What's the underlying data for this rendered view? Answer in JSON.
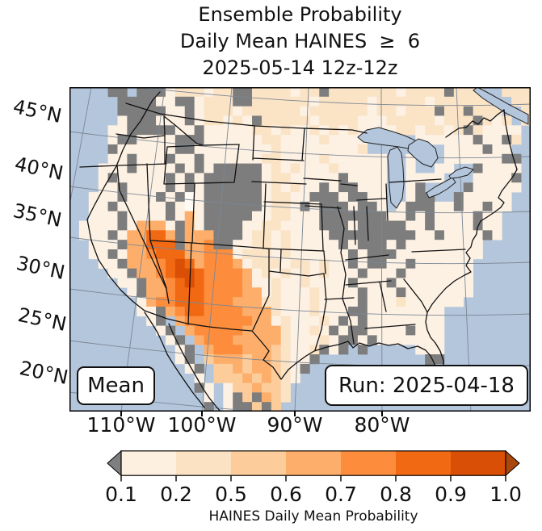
{
  "title": {
    "line1": "Ensemble Probability",
    "line2": "Daily Mean HAINES  ≥  6",
    "line3": "2025-05-14 12z-12z"
  },
  "map": {
    "mean_label": "Mean",
    "run_label": "Run: 2025-04-18",
    "lat_labels": [
      "45°N",
      "40°N",
      "35°N",
      "30°N",
      "25°N",
      "20°N"
    ],
    "lon_labels": [
      "110°W",
      "100°W",
      "90°W",
      "80°W"
    ],
    "ocean_color": "#b4c6dc",
    "graticule_color": "#7b8794",
    "border_color": "#111111"
  },
  "colorbar": {
    "ticks": [
      "0.1",
      "0.2",
      "0.5",
      "0.6",
      "0.7",
      "0.8",
      "0.9",
      "1.0"
    ],
    "caption": "HAINES Daily Mean Probability",
    "segment_colors": [
      "#fdf0e0",
      "#fbe2c3",
      "#fccc9b",
      "#fdae6b",
      "#fd8d3c",
      "#f16913",
      "#d94f05"
    ],
    "under_color": "#7f7f7f",
    "over_color": "#a8480c",
    "outline_color": "#000000"
  },
  "chart_data": {
    "type": "heatmap",
    "title": "Ensemble Probability Daily Mean HAINES ≥ 6 2025-05-14 12z-12z",
    "colorbar_label": "HAINES Daily Mean Probability",
    "levels": [
      0.1,
      0.2,
      0.5,
      0.6,
      0.7,
      0.8,
      0.9,
      1.0
    ],
    "level_colors": [
      "#fdf0e0",
      "#fbe2c3",
      "#fccc9b",
      "#fdae6b",
      "#fd8d3c",
      "#f16913",
      "#d94f05"
    ],
    "under_level_color": "#7f7f7f",
    "over_level_color": "#a8480c",
    "annotations": [
      "Mean",
      "Run: 2025-04-18"
    ],
    "x_ticks": [
      "110°W",
      "100°W",
      "90°W",
      "80°W"
    ],
    "y_ticks": [
      "45°N",
      "40°N",
      "35°N",
      "30°N",
      "25°N",
      "20°N"
    ],
    "notes": "CONUS map of ensemble probability of daily-mean Haines index >= 6. Highest probabilities (0.7-1.0, dark orange) over Arizona, New Mexico and Chihuahua, extending 0.5-0.8 along the Rio Grande into west Texas; gray cells (< 0.1) over Washington, Wyoming, the Ohio valley / mid-Mississippi valley, the Gulf coast and south Florida; most remaining land 0.1-0.5 pale orange.",
    "grid": {
      "cols": 48,
      "rows": 34,
      "cell_legend": {
        ".": "ocean/no data",
        "a": "0.1-0.2",
        "b": "0.2-0.5",
        "c": "0.5-0.6",
        "d": "0.6-0.7",
        "e": "0.7-0.8",
        "f": "0.8-0.9",
        "h": "0.9-1.0",
        "g": "<0.1",
        "w": "near-zero white"
      },
      "cell_colors": {
        "a": "#fdf1e3",
        "b": "#fbe3c6",
        "c": "#fccc9b",
        "d": "#fdae6b",
        "e": "#fd8d3c",
        "f": "#f16913",
        "h": "#d94f05",
        "g": "#7d7d7d",
        "w": "#fffaf3"
      },
      "rows_data": [
        "....gg.gggabbbabbggbbbbabbgbbbbbbbabbbbgbbb..bbb",
        ".....ggggaaggabbbggbbbbbbabbbbbabbbbbabbbbbb..bb",
        ".....gggggaagabbbabbbbbbabbbbbbabbabbbgbbgbbb..b",
        ".....agggaaagabbabagbbbbbabbbbaaabbbbbabbbgbab.b",
        "....aagggggaagaaaaabbabaabababaaaabbabbabgbaaaa.",
        "....aggaaaagggaaaaaabbaaaabaaaa.....aaaaaagaagb.",
        "....gaaaaaaggaaaaaaaabaaaaaaaab........aaaagaa..",
        "....aagaaagaagaaaaaabbaaaabaaaaaa..a...aaaaaagg.",
        "...aaagaaaagagagggggababaaabaaaaa..a..aa..gaaaa.",
        "...agaaaaagagaggggggabbaaaaagaaaa..aaaa...aaaag.",
        "...aagaaaagagaggggggababaagaggaaa..ag....gaaaaa.",
        "..aaagaaagagwaggggggabbaagggaggaa..agg..gaaaaa..",
        "..aagaaaaagawaggggggabbagagggagga.agggaagaagaa..",
        "..aaagaaaagadagggggaabbaaagggggggaagagaaaagaa...",
        ".aaaagadddagdaggggaabbaaaagggagggggaagaaaagaa...",
        ".aaagaddffdgdddgggabbabaaaagggggggggaagaaaaga...",
        "..aaagddfffgddeggaabbabaaaaagagggagaaaaaaaa.....",
        "..aagaddefffddeeeabbbabaaaaaagagggaaaaaaaaa.....",
        "...aagdddefhfdeeedabbbabbabaagaggaagaaaaaa......",
        "....aagddefhhfeeeedababababaaagaaagaaaaaaa......",
        ".....aagddefhfeeeedaabaabaaaagaaagaaaaaaaa......",
        "......agddefffeeeeddabaaabaaaagaaagaaaaaaa......",
        ".......adeefffeeedddbbaaabaaaagaaabaaaaaa.......",
        ".......aagdeffeeeedddbaaabaaaggaaaaaaaa.........",
        "........ag.deeeeeeeddabaaabagagaaaaaaaa.........",
        ".........ag.deeeeeddddbaabagaggaaaagaaa.........",
        "..........ag.deeedddddbaaabaggagaaaaaaa.........",
        "...........ag.deeedddcbaabgag.g.....aaa.........",
        "...........ag.cdddcddcbaag...........gg.........",
        "............ag.ccdcddcbag............g..........",
        ".............a.cccdcdcba.............g..........",
        ".............ga.accdccb.........................",
        "..............a.agcgdcb.........................",
        "..............g.aggcgc.........................."
      ]
    }
  }
}
